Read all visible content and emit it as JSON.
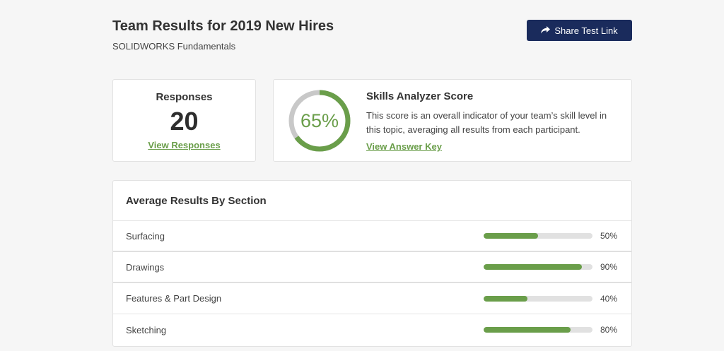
{
  "header": {
    "title": "Team Results for 2019 New Hires",
    "subtitle": "SOLIDWORKS Fundamentals",
    "share_label": "Share Test Link"
  },
  "responses": {
    "title": "Responses",
    "count": "20",
    "link": "View Responses"
  },
  "score": {
    "percent_label": "65%",
    "percent_value": 0.65,
    "title": "Skills Analyzer Score",
    "description": "This score is an overall indicator of your team’s skill level in this topic, averaging all results from each participant.",
    "link": "View Answer Key"
  },
  "sections": {
    "heading": "Average Results By Section",
    "rows": [
      {
        "name": "Surfacing",
        "percent_label": "50%",
        "value": 0.5
      },
      {
        "name": "Drawings",
        "percent_label": "90%",
        "value": 0.9
      },
      {
        "name": "Features & Part Design",
        "percent_label": "40%",
        "value": 0.4
      },
      {
        "name": "Sketching",
        "percent_label": "80%",
        "value": 0.8
      }
    ]
  },
  "colors": {
    "accent_green": "#6a9e4a",
    "navy_button": "#1a2b5c",
    "track_gray": "#c8c8c8"
  },
  "icons": {
    "share": "share-arrow-icon"
  }
}
